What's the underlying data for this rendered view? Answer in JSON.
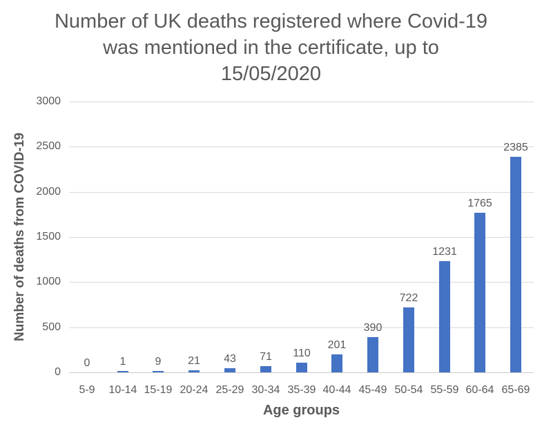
{
  "chart_data": {
    "type": "bar",
    "title": "Number of UK deaths registered where Covid-19 was mentioned in the certificate, up to 15/05/2020",
    "title_lines": [
      "Number of UK deaths registered where Covid-19",
      "was mentioned in the certificate, up to",
      "15/05/2020"
    ],
    "xlabel": "Age groups",
    "ylabel": "Number of deaths from COVID-19",
    "categories": [
      "5-9",
      "10-14",
      "15-19",
      "20-24",
      "25-29",
      "30-34",
      "35-39",
      "40-44",
      "45-49",
      "50-54",
      "55-59",
      "60-64",
      "65-69"
    ],
    "values": [
      0,
      1,
      9,
      21,
      43,
      71,
      110,
      201,
      390,
      722,
      1231,
      1765,
      2385
    ],
    "data_labels": [
      "0",
      "1",
      "9",
      "21",
      "43",
      "71",
      "110",
      "201",
      "390",
      "722",
      "1231",
      "1765",
      "2385"
    ],
    "y_ticks": [
      0,
      500,
      1000,
      1500,
      2000,
      2500,
      3000
    ],
    "ylim": [
      0,
      3000
    ],
    "grid": true,
    "legend_position": "none",
    "colors": {
      "bar": "#4472C4",
      "gridline": "#D9D9D9",
      "axis_line": "#C9C9C9",
      "text": "#595959"
    }
  }
}
